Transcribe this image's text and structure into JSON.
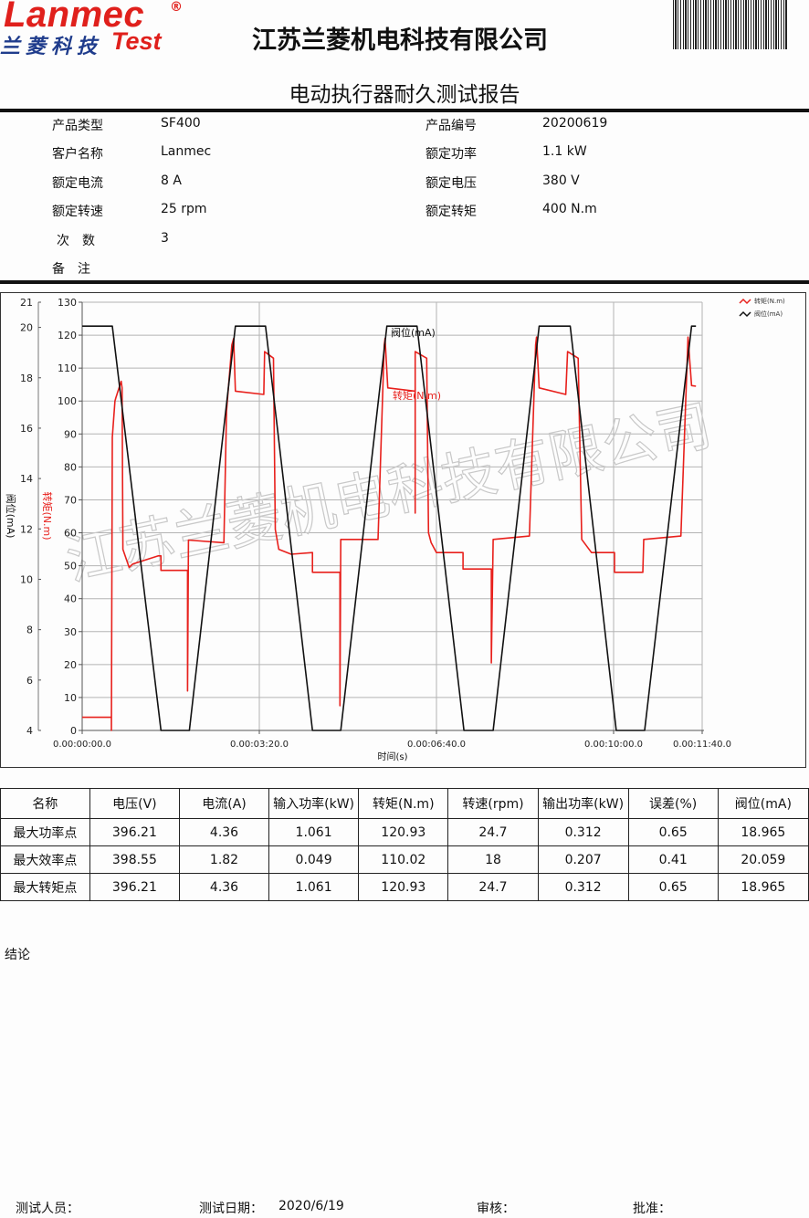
{
  "header": {
    "logo_en": "Lanmec",
    "logo_reg": "®",
    "logo_cn": "兰菱科技",
    "logo_test": "Test",
    "company": "江苏兰菱机电科技有限公司",
    "title": "电动执行器耐久测试报告"
  },
  "info": {
    "left": [
      {
        "label": "产品类型",
        "value": "SF400"
      },
      {
        "label": "客户名称",
        "value": "Lanmec"
      },
      {
        "label": "额定电流",
        "value": "8 A"
      },
      {
        "label": "额定转速",
        "value": "25 rpm"
      },
      {
        "label": "次　数",
        "value": "3"
      },
      {
        "label": "备　注",
        "value": ""
      }
    ],
    "right": [
      {
        "label": "产品编号",
        "value": "20200619"
      },
      {
        "label": "额定功率",
        "value": "1.1 kW"
      },
      {
        "label": "额定电压",
        "value": "380 V"
      },
      {
        "label": "额定转矩",
        "value": "400 N.m"
      }
    ]
  },
  "watermark": "江苏兰菱机电科技有限公司",
  "chart_data": {
    "type": "line",
    "xlabel": "时间(s)",
    "x_tick_labels": [
      "0.00:00:00.0",
      "0.00:03:20.0",
      "0.00:06:40.0",
      "0.00:10:00.0",
      "0.00:11:40.0"
    ],
    "x_ticks": [
      "0:00",
      "3:20",
      "6:40",
      "10:00",
      "11:40"
    ],
    "xlim": [
      "0:00",
      "11:40"
    ],
    "y_left_outer": {
      "label": "阀位(mA)",
      "range": [
        4,
        21
      ],
      "ticks": [
        4,
        6,
        8,
        10,
        12,
        14,
        16,
        18,
        20,
        21
      ]
    },
    "y_left_inner": {
      "label": "转矩(N.m)",
      "range": [
        0,
        130
      ],
      "ticks": [
        0,
        10,
        20,
        30,
        40,
        50,
        60,
        70,
        80,
        90,
        100,
        110,
        120,
        130
      ]
    },
    "grid": true,
    "legend_position": "top-right",
    "annotations": [
      {
        "text": "阀位(mA)",
        "series": "阀位(mA)"
      },
      {
        "text": "转矩(N.m)",
        "series": "转矩(N.m)"
      }
    ],
    "series": [
      {
        "name": "转矩(N.m)",
        "color": "#e8201c",
        "axis": "inner",
        "points": [
          [
            "0:00",
            4
          ],
          [
            "0:33",
            4
          ],
          [
            "0:33",
            0
          ],
          [
            "0:34",
            89
          ],
          [
            "0:37",
            100
          ],
          [
            "0:38",
            101
          ],
          [
            "0:44",
            106
          ],
          [
            "0:45",
            104
          ],
          [
            "0:46",
            55
          ],
          [
            "0:53",
            49.5
          ],
          [
            "0:57",
            50.5
          ],
          [
            "1:26",
            53
          ],
          [
            "1:29",
            53
          ],
          [
            "1:29",
            48.6
          ],
          [
            "1:59",
            48.6
          ],
          [
            "1:59",
            12
          ],
          [
            "2:00",
            57.8
          ],
          [
            "2:40",
            57
          ],
          [
            "2:43",
            97
          ],
          [
            "2:49",
            117
          ],
          [
            "2:51",
            119
          ],
          [
            "2:53",
            103
          ],
          [
            "3:25",
            102
          ],
          [
            "3:26",
            115
          ],
          [
            "3:36",
            113
          ],
          [
            "3:38",
            61
          ],
          [
            "3:42",
            55
          ],
          [
            "3:56",
            53.5
          ],
          [
            "4:20",
            54
          ],
          [
            "4:20",
            48
          ],
          [
            "4:51",
            48
          ],
          [
            "4:51",
            7.5
          ],
          [
            "4:52",
            58
          ],
          [
            "5:34",
            58
          ],
          [
            "5:41",
            117
          ],
          [
            "5:42",
            119
          ],
          [
            "5:45",
            104
          ],
          [
            "6:16",
            103
          ],
          [
            "6:16",
            66
          ],
          [
            "6:16",
            115
          ],
          [
            "6:29",
            113
          ],
          [
            "6:31",
            60
          ],
          [
            "6:34",
            57
          ],
          [
            "6:40",
            54
          ],
          [
            "7:10",
            54
          ],
          [
            "7:10",
            49
          ],
          [
            "7:42",
            49
          ],
          [
            "7:42",
            20.5
          ],
          [
            "7:44",
            58
          ],
          [
            "8:25",
            59
          ],
          [
            "8:32",
            117
          ],
          [
            "8:33",
            119.4
          ],
          [
            "8:36",
            104
          ],
          [
            "9:06",
            102
          ],
          [
            "9:08",
            115
          ],
          [
            "9:20",
            113
          ],
          [
            "9:24",
            58
          ],
          [
            "9:35",
            54
          ],
          [
            "10:01",
            54
          ],
          [
            "10:01",
            48
          ],
          [
            "10:33",
            48
          ],
          [
            "10:34",
            58
          ],
          [
            "11:16",
            59
          ],
          [
            "11:24",
            119.4
          ],
          [
            "11:28",
            104.7
          ],
          [
            "11:33",
            104.5
          ]
        ]
      },
      {
        "name": "阀位(mA)",
        "color": "#111111",
        "axis": "outer",
        "points": [
          [
            "0:00",
            20.05
          ],
          [
            "0:34",
            20.05
          ],
          [
            "1:29",
            4
          ],
          [
            "2:01",
            4
          ],
          [
            "2:53",
            20.05
          ],
          [
            "3:27",
            20.05
          ],
          [
            "4:20",
            4
          ],
          [
            "4:52",
            4
          ],
          [
            "5:44",
            20.05
          ],
          [
            "6:18",
            20.05
          ],
          [
            "7:11",
            4
          ],
          [
            "7:44",
            4
          ],
          [
            "8:36",
            20.05
          ],
          [
            "9:11",
            20.05
          ],
          [
            "10:03",
            4
          ],
          [
            "10:35",
            4
          ],
          [
            "11:28",
            20.05
          ],
          [
            "11:33",
            20.05
          ]
        ]
      }
    ]
  },
  "results_table": {
    "headers": [
      "名称",
      "电压(V)",
      "电流(A)",
      "输入功率(kW)",
      "转矩(N.m)",
      "转速(rpm)",
      "输出功率(kW)",
      "误差(%)",
      "阀位(mA)"
    ],
    "rows": [
      [
        "最大功率点",
        "396.21",
        "4.36",
        "1.061",
        "120.93",
        "24.7",
        "0.312",
        "0.65",
        "18.965"
      ],
      [
        "最大效率点",
        "398.55",
        "1.82",
        "0.049",
        "110.02",
        "18",
        "0.207",
        "0.41",
        "20.059"
      ],
      [
        "最大转矩点",
        "396.21",
        "4.36",
        "1.061",
        "120.93",
        "24.7",
        "0.312",
        "0.65",
        "18.965"
      ]
    ]
  },
  "conclusion_label": "结论",
  "footer": {
    "tester_label": "测试人员：",
    "date_label": "测试日期：",
    "date_value": "2020/6/19",
    "reviewer_label": "审核：",
    "approver_label": "批准："
  }
}
